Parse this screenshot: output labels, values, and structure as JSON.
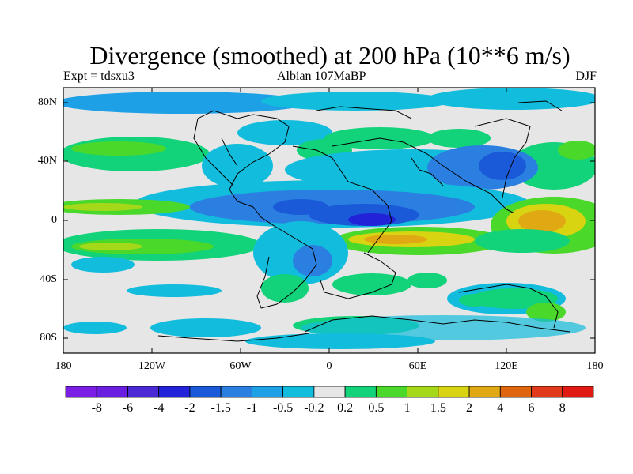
{
  "title": "Divergence (smoothed) at 200 hPa (10**6 m/s)",
  "subtitle": {
    "left": "Expt = tdsxu3",
    "center": "Albian   107MaBP",
    "right": "DJF"
  },
  "axes": {
    "lat_labels": [
      "80N",
      "40N",
      "0",
      "40S",
      "80S"
    ],
    "lon_labels": [
      "180",
      "120W",
      "60W",
      "0",
      "60E",
      "120E",
      "180"
    ]
  },
  "colorbar": {
    "colors": [
      "#7a1ee6",
      "#6a1fe0",
      "#4b2ad6",
      "#2222d8",
      "#1a5ad8",
      "#2a7fe0",
      "#1ea0e6",
      "#12bcdc",
      "#e6e6e6",
      "#12d27a",
      "#4ad82a",
      "#a6d81a",
      "#d8d412",
      "#e0a812",
      "#e0660e",
      "#e03a1a",
      "#e01a12"
    ],
    "labels": [
      "-8",
      "-6",
      "-4",
      "-2",
      "-1.5",
      "-1",
      "-0.5",
      "-0.2",
      "0.2",
      "0.5",
      "1",
      "1.5",
      "2",
      "4",
      "6",
      "8"
    ]
  }
}
